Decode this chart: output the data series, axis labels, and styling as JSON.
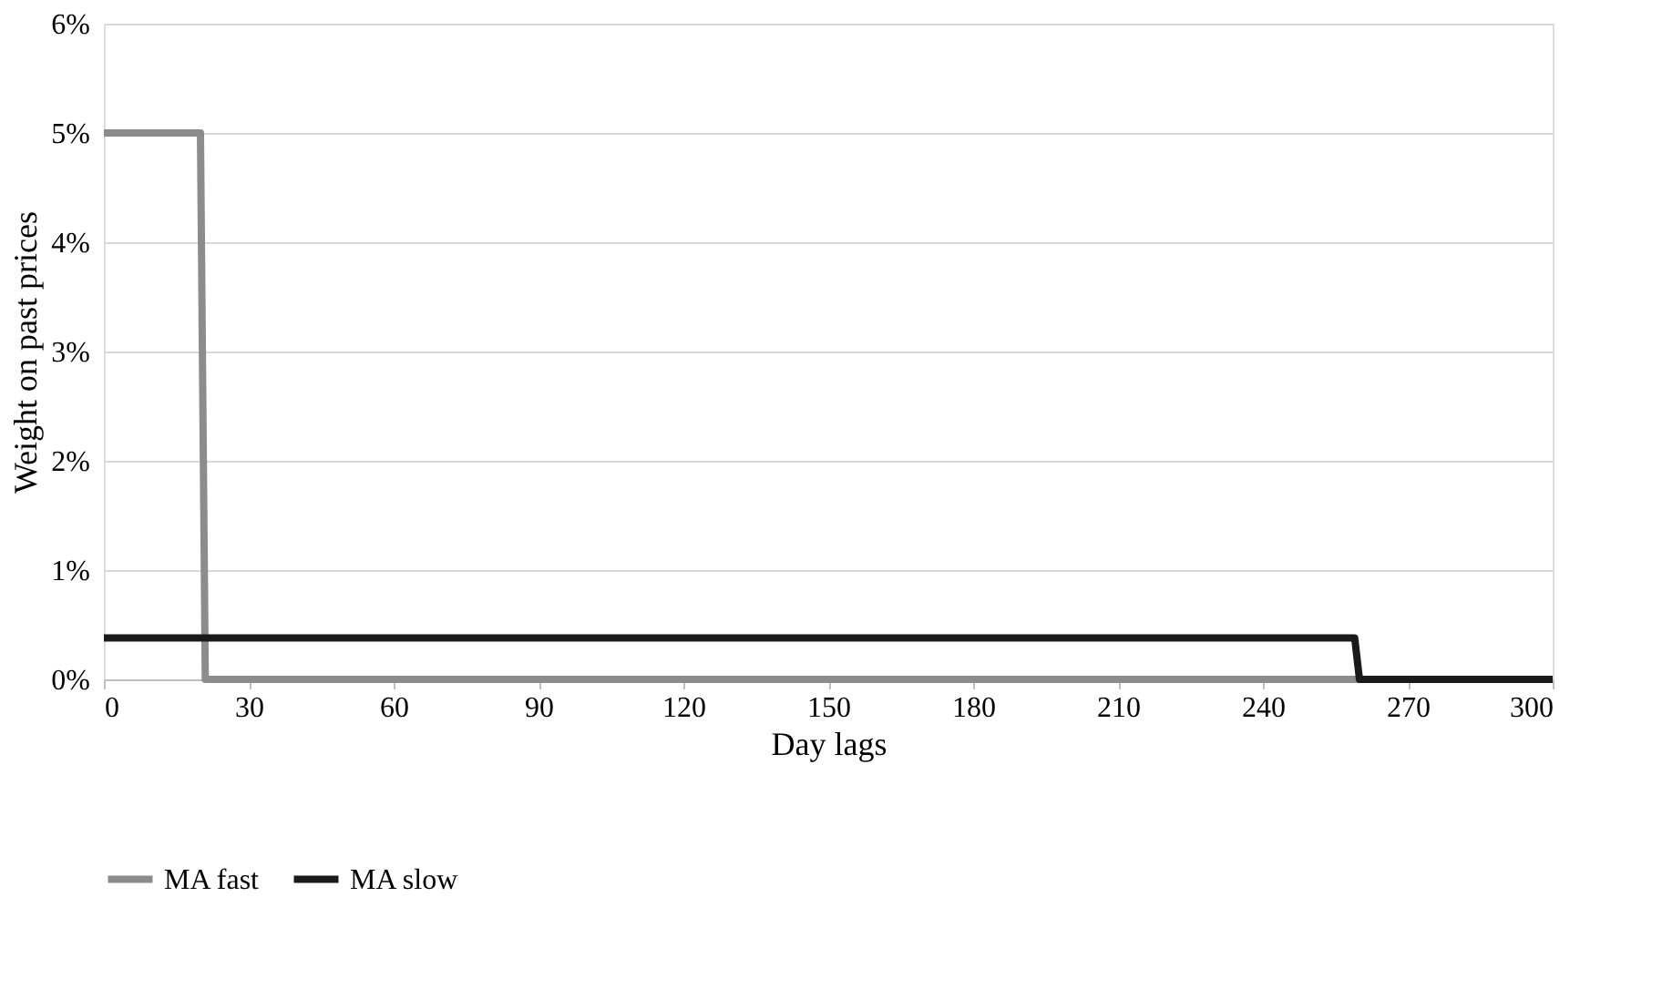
{
  "chart_data": {
    "type": "line",
    "xlabel": "Day lags",
    "ylabel": "Weight on past prices",
    "series": [
      {
        "name": "MA fast",
        "color": "#8c8c8c",
        "x": [
          0,
          20,
          21,
          300
        ],
        "values": [
          5,
          5,
          0,
          0
        ]
      },
      {
        "name": "MA slow",
        "color": "#1a1a1a",
        "x": [
          0,
          259,
          260,
          300
        ],
        "values": [
          0.38,
          0.38,
          0,
          0
        ]
      }
    ],
    "xlim": [
      0,
      300
    ],
    "xticks": [
      0,
      30,
      60,
      90,
      120,
      150,
      180,
      210,
      240,
      270,
      300
    ],
    "ylim": [
      0,
      6
    ],
    "yticks": [
      {
        "value": 0,
        "label": "0%"
      },
      {
        "value": 1,
        "label": "1%"
      },
      {
        "value": 2,
        "label": "2%"
      },
      {
        "value": 3,
        "label": "3%"
      },
      {
        "value": 4,
        "label": "4%"
      },
      {
        "value": 5,
        "label": "5%"
      },
      {
        "value": 6,
        "label": "6%"
      }
    ],
    "grid": "y",
    "legend": "bottom",
    "marker": "none",
    "line_style": "solid"
  }
}
